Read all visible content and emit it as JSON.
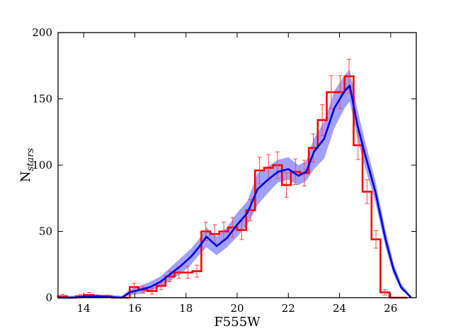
{
  "chart_data": {
    "type": "line",
    "xlabel": "F555W",
    "ylabel_main": "N",
    "ylabel_sub": "stars",
    "xlim": [
      13.0,
      27.0
    ],
    "ylim": [
      0,
      200
    ],
    "xticks": [
      14,
      16,
      18,
      20,
      22,
      24,
      26
    ],
    "yticks": [
      0,
      50,
      100,
      150,
      200
    ],
    "grid": false,
    "legend": "none",
    "colors": {
      "histogram": "#ff0000",
      "errorbar": "#ff4444",
      "model_line": "#0000dd",
      "band": "#8080ff"
    },
    "series": [
      {
        "kind": "histogram",
        "bin_edges": [
          13.0,
          13.35,
          13.7,
          14.05,
          14.4,
          14.75,
          15.1,
          15.45,
          15.8,
          16.15,
          16.5,
          16.85,
          17.2,
          17.55,
          17.9,
          18.25,
          18.6,
          18.95,
          19.3,
          19.65,
          20.0,
          20.35,
          20.7,
          21.05,
          21.4,
          21.75,
          22.1,
          22.45,
          22.8,
          23.15,
          23.5,
          23.85,
          24.2,
          24.55,
          24.9,
          25.25,
          25.6,
          25.95,
          26.3,
          26.65
        ],
        "counts": [
          1,
          0,
          1,
          2,
          1,
          1,
          0,
          0,
          8,
          6,
          5,
          9,
          16,
          19,
          19,
          20,
          50,
          48,
          50,
          53,
          51,
          66,
          96,
          98,
          100,
          85,
          95,
          94,
          113,
          134,
          155,
          155,
          167,
          115,
          80,
          44,
          4,
          0,
          0
        ],
        "errors": [
          1.5,
          0.5,
          1.2,
          2.0,
          1.0,
          1.0,
          0.5,
          0.5,
          3.0,
          2.5,
          2.2,
          3.0,
          4.0,
          4.4,
          4.4,
          4.5,
          7.0,
          7.0,
          7.0,
          7.3,
          7.1,
          8.1,
          10,
          10,
          10,
          9.2,
          9.7,
          9.7,
          10.6,
          11.6,
          12.5,
          12.5,
          13,
          10.7,
          9,
          6.6,
          2,
          0,
          0
        ]
      },
      {
        "kind": "line",
        "x": [
          13.0,
          13.5,
          14.0,
          14.5,
          15.0,
          15.5,
          15.8,
          16.2,
          16.6,
          17.0,
          17.4,
          17.8,
          18.2,
          18.5,
          18.8,
          19.2,
          19.6,
          20.0,
          20.4,
          20.8,
          21.2,
          21.6,
          22.0,
          22.4,
          22.7,
          23.0,
          23.4,
          23.8,
          24.2,
          24.4,
          24.7,
          25.0,
          25.4,
          25.8,
          26.1,
          26.4,
          26.8
        ],
        "y": [
          0,
          0,
          0.5,
          1,
          0.5,
          0,
          4,
          6,
          8,
          12,
          18,
          24,
          31,
          38,
          46,
          39,
          45,
          55,
          64,
          82,
          89,
          95,
          97,
          92,
          95,
          110,
          120,
          143,
          156,
          160,
          130,
          108,
          80,
          44,
          22,
          8,
          0
        ]
      },
      {
        "kind": "band",
        "x": [
          13.0,
          13.5,
          14.0,
          14.5,
          15.0,
          15.5,
          15.8,
          16.2,
          16.6,
          17.0,
          17.4,
          17.8,
          18.2,
          18.5,
          18.8,
          19.2,
          19.6,
          20.0,
          20.4,
          20.8,
          21.2,
          21.6,
          22.0,
          22.4,
          22.7,
          23.0,
          23.4,
          23.8,
          24.2,
          24.4,
          24.7,
          25.0,
          25.4,
          25.8,
          26.1,
          26.4,
          26.8
        ],
        "low": [
          0,
          0,
          0,
          0,
          0,
          0,
          2,
          3,
          5,
          8,
          13,
          18,
          25,
          32,
          38,
          32,
          38,
          46,
          55,
          70,
          79,
          87,
          89,
          85,
          88,
          97,
          105,
          128,
          143,
          148,
          120,
          98,
          72,
          38,
          18,
          6,
          0
        ],
        "high": [
          1.5,
          1.5,
          2,
          2.5,
          2,
          1.5,
          6,
          9,
          12,
          16,
          23,
          30,
          37,
          44,
          53,
          46,
          53,
          64,
          73,
          94,
          99,
          104,
          106,
          100,
          103,
          120,
          133,
          156,
          168,
          172,
          142,
          118,
          88,
          51,
          27,
          11,
          1
        ]
      }
    ]
  }
}
